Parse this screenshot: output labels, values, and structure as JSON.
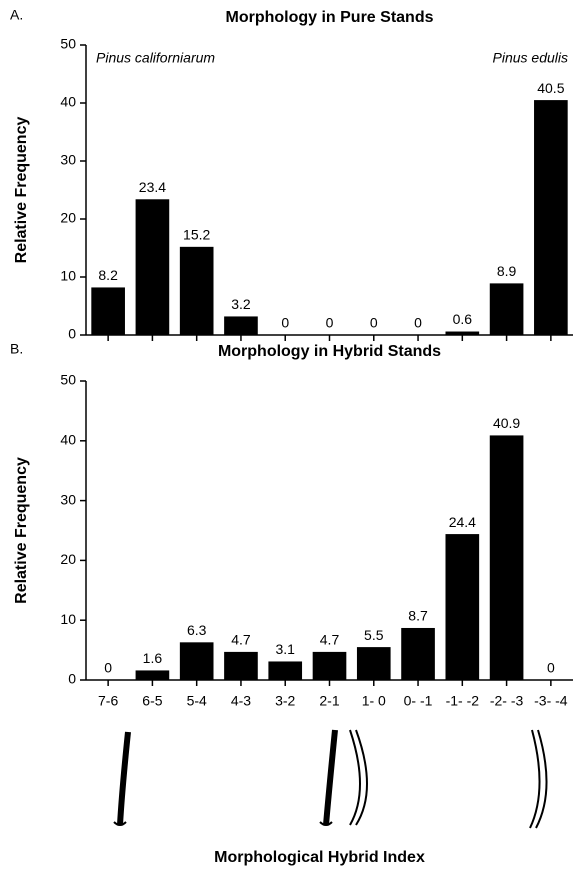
{
  "chart_data": [
    {
      "type": "bar",
      "panel_label": "A.",
      "title": "Morphology in Pure Stands",
      "ylabel": "Relative Frequency",
      "annotations": [
        "Pinus californiarum",
        "Pinus edulis"
      ],
      "categories": [
        null,
        null,
        null,
        null,
        null,
        null,
        null,
        null,
        null,
        null,
        null
      ],
      "values": [
        8.2,
        23.4,
        15.2,
        3.2,
        0,
        0,
        0,
        0,
        0.6,
        8.9,
        40.5
      ],
      "color": "#000000",
      "ylim": [
        0,
        50
      ],
      "yticks": [
        0,
        10,
        20,
        30,
        40,
        50
      ]
    },
    {
      "type": "bar",
      "panel_label": "B.",
      "title": "Morphology in Hybrid Stands",
      "ylabel": "Relative Frequency",
      "xlabel": "Morphological Hybrid Index",
      "categories": [
        "7-6",
        "6-5",
        "5-4",
        "4-3",
        "3-2",
        "2-1",
        "1- 0",
        "0- -1",
        "-1- -2",
        "-2- -3",
        "-3- -4"
      ],
      "values": [
        0,
        1.6,
        6.3,
        4.7,
        3.1,
        4.7,
        5.5,
        8.7,
        24.4,
        40.9,
        0
      ],
      "color": "#000000",
      "ylim": [
        0,
        50
      ],
      "yticks": [
        0,
        10,
        20,
        30,
        40,
        50
      ]
    }
  ]
}
